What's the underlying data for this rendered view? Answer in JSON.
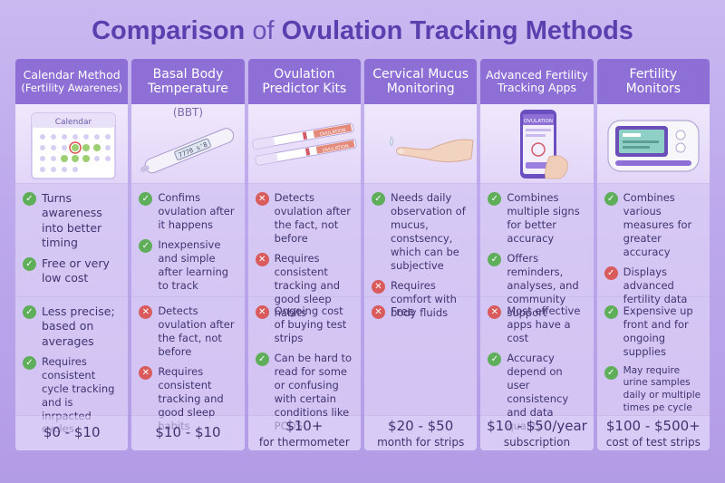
{
  "title": {
    "part1": "Comparison",
    "of": "of",
    "part2": "Ovulation Tracking Methods"
  },
  "columns": [
    {
      "header": [
        "Calendar Method",
        "(Fertility Awarenes)"
      ],
      "header_small": true,
      "image_text": "Calendar",
      "pros": [
        {
          "icon": "check",
          "text": "Turns awareness into better timing"
        },
        {
          "icon": "check",
          "text": "Free or very low cost"
        }
      ],
      "cons": [
        {
          "icon": "check",
          "text": "Less precise; based on averages"
        },
        {
          "icon": "check",
          "text": "Requires consistent cycle tracking and is inrpacted cycles"
        }
      ],
      "cost": "$0 - $10",
      "cost_sub": ""
    },
    {
      "header": [
        "Basal Body",
        "Temperature",
        "(BBT)"
      ],
      "image_text": "7770 s'8",
      "pros": [
        {
          "icon": "check",
          "text": "Confims ovulation after it happens"
        },
        {
          "icon": "check",
          "text": "Inexpensive and simple after learning to track"
        }
      ],
      "cons": [
        {
          "icon": "x",
          "text": "Detects ovulation after the fact, not before"
        },
        {
          "icon": "x",
          "text": "Requires consistent tracking and good sleep habits"
        }
      ],
      "cost": "$10 - $10",
      "cost_sub": ""
    },
    {
      "header": [
        "Ovulation",
        "Predictor Kits"
      ],
      "image_text": "OVULATION",
      "pros": [
        {
          "icon": "x",
          "text": "Detects ovulation after the fact, not before"
        },
        {
          "icon": "x",
          "text": "Requires consistent tracking and good sleep habits"
        }
      ],
      "cons": [
        {
          "icon": "x",
          "text": "Ongoing cost of buying test strips"
        },
        {
          "icon": "check",
          "text": "Can be hard to read for some or confusing with certain conditions like PCOS"
        }
      ],
      "cost": "$10+",
      "cost_sub": "for thermometer"
    },
    {
      "header": [
        "Cervical Mucus",
        "Monitoring"
      ],
      "image_text": "",
      "pros": [
        {
          "icon": "check",
          "text": "Needs daily observation of mucus, constsency, which can be subjective"
        },
        {
          "icon": "x",
          "text": "Requires comfort with body fluids"
        }
      ],
      "cons": [
        {
          "icon": "x",
          "text": "Free"
        }
      ],
      "cost": "$20 - $50",
      "cost_sub": "month for strips"
    },
    {
      "header": [
        "Advanced Fertility",
        "Tracking Apps"
      ],
      "header_small": true,
      "image_text": "OVULATION",
      "pros": [
        {
          "icon": "check",
          "text": "Combines multiple signs for better accuracy"
        },
        {
          "icon": "check",
          "text": "Offers reminders, analyses, and community support"
        }
      ],
      "cons": [
        {
          "icon": "x",
          "text": "Most effective apps have a cost"
        },
        {
          "icon": "check",
          "text": "Accuracy depend on user consistency and data quality"
        }
      ],
      "cost": "$10 - $50/year",
      "cost_sub": "subscription"
    },
    {
      "header": [
        "Fertility",
        "Monitors"
      ],
      "image_text": "",
      "pros": [
        {
          "icon": "check",
          "text": "Combines various measures for greater accuracy"
        },
        {
          "icon": "check",
          "text": "Displays advanced fertility data"
        }
      ],
      "cons": [
        {
          "icon": "check",
          "text": "Expensive up front and for ongoing supplies"
        },
        {
          "icon": "check",
          "text": "May require urine samples daily or multiple times pe cycle"
        }
      ],
      "cost": "$100 - $500+",
      "cost_sub": "cost of test strips"
    }
  ]
}
